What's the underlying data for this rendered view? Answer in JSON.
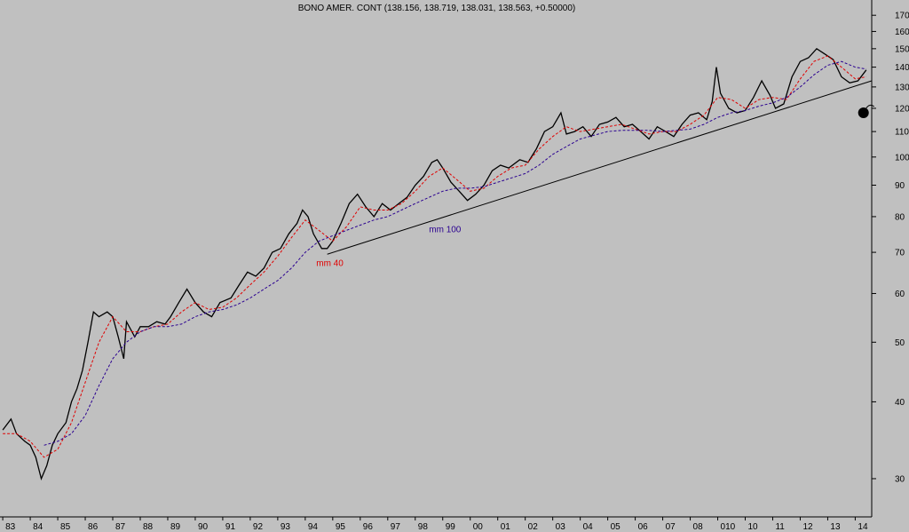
{
  "chart_data": {
    "type": "line",
    "title": "BONO AMER. CONT (138.156, 138.719, 138.031, 138.563, +0.50000)",
    "y_scale": "log",
    "ylim": [
      26,
      180
    ],
    "x_range": [
      1982.9,
      2014.6
    ],
    "y_ticks": [
      30,
      40,
      50,
      60,
      70,
      80,
      90,
      100,
      110,
      120,
      130,
      140,
      150,
      160,
      170
    ],
    "x_ticks": [
      {
        "label": "83",
        "x": 1983.0
      },
      {
        "label": "84",
        "x": 1984.0
      },
      {
        "label": "85",
        "x": 1985.0
      },
      {
        "label": "86",
        "x": 1986.0
      },
      {
        "label": "87",
        "x": 1987.0
      },
      {
        "label": "88",
        "x": 1988.0
      },
      {
        "label": "89",
        "x": 1989.0
      },
      {
        "label": "90",
        "x": 1990.0
      },
      {
        "label": "91",
        "x": 1991.0
      },
      {
        "label": "92",
        "x": 1992.0
      },
      {
        "label": "93",
        "x": 1993.0
      },
      {
        "label": "94",
        "x": 1994.0
      },
      {
        "label": "95",
        "x": 1995.0
      },
      {
        "label": "96",
        "x": 1996.0
      },
      {
        "label": "97",
        "x": 1997.0
      },
      {
        "label": "98",
        "x": 1998.0
      },
      {
        "label": "99",
        "x": 1999.0
      },
      {
        "label": "00",
        "x": 2000.0
      },
      {
        "label": "01",
        "x": 2001.0
      },
      {
        "label": "02",
        "x": 2002.0
      },
      {
        "label": "03",
        "x": 2003.0
      },
      {
        "label": "04",
        "x": 2004.0
      },
      {
        "label": "05",
        "x": 2005.0
      },
      {
        "label": "06",
        "x": 2006.0
      },
      {
        "label": "07",
        "x": 2007.0
      },
      {
        "label": "08",
        "x": 2008.0
      },
      {
        "label": "010",
        "x": 2009.0
      },
      {
        "label": "10",
        "x": 2010.0
      },
      {
        "label": "11",
        "x": 2011.0
      },
      {
        "label": "12",
        "x": 2012.0
      },
      {
        "label": "13",
        "x": 2013.0
      },
      {
        "label": "14",
        "x": 2014.0
      }
    ],
    "grid": false,
    "series": [
      {
        "color": "#000000",
        "style": "price bars",
        "points": [
          [
            1983.0,
            36.0
          ],
          [
            1983.3,
            37.5
          ],
          [
            1983.5,
            35.5
          ],
          [
            1983.8,
            34.5
          ],
          [
            1984.0,
            34.0
          ],
          [
            1984.2,
            32.5
          ],
          [
            1984.4,
            30.0
          ],
          [
            1984.6,
            31.5
          ],
          [
            1984.8,
            34.0
          ],
          [
            1985.0,
            35.5
          ],
          [
            1985.3,
            37.0
          ],
          [
            1985.5,
            40.0
          ],
          [
            1985.7,
            42.0
          ],
          [
            1985.9,
            45.0
          ],
          [
            1986.1,
            50.0
          ],
          [
            1986.3,
            56.0
          ],
          [
            1986.5,
            55.0
          ],
          [
            1986.8,
            56.0
          ],
          [
            1987.0,
            55.0
          ],
          [
            1987.2,
            51.0
          ],
          [
            1987.4,
            47.0
          ],
          [
            1987.5,
            54.0
          ],
          [
            1987.8,
            51.0
          ],
          [
            1988.0,
            53.0
          ],
          [
            1988.3,
            53.0
          ],
          [
            1988.6,
            54.0
          ],
          [
            1988.9,
            53.5
          ],
          [
            1989.1,
            55.0
          ],
          [
            1989.4,
            58.0
          ],
          [
            1989.7,
            61.0
          ],
          [
            1990.0,
            58.0
          ],
          [
            1990.3,
            56.0
          ],
          [
            1990.6,
            55.0
          ],
          [
            1990.9,
            58.0
          ],
          [
            1991.3,
            59.0
          ],
          [
            1991.6,
            62.0
          ],
          [
            1991.9,
            65.0
          ],
          [
            1992.2,
            64.0
          ],
          [
            1992.5,
            66.0
          ],
          [
            1992.8,
            70.0
          ],
          [
            1993.1,
            71.0
          ],
          [
            1993.4,
            75.0
          ],
          [
            1993.7,
            78.0
          ],
          [
            1993.9,
            82.0
          ],
          [
            1994.1,
            80.0
          ],
          [
            1994.3,
            75.0
          ],
          [
            1994.6,
            71.0
          ],
          [
            1994.8,
            71.0
          ],
          [
            1995.0,
            73.0
          ],
          [
            1995.3,
            78.0
          ],
          [
            1995.6,
            84.0
          ],
          [
            1995.9,
            87.0
          ],
          [
            1996.2,
            83.0
          ],
          [
            1996.5,
            80.0
          ],
          [
            1996.8,
            84.0
          ],
          [
            1997.1,
            82.0
          ],
          [
            1997.4,
            84.0
          ],
          [
            1997.7,
            86.0
          ],
          [
            1998.0,
            90.0
          ],
          [
            1998.3,
            93.0
          ],
          [
            1998.6,
            98.0
          ],
          [
            1998.8,
            99.0
          ],
          [
            1999.0,
            96.0
          ],
          [
            1999.3,
            91.0
          ],
          [
            1999.6,
            88.0
          ],
          [
            1999.9,
            85.0
          ],
          [
            2000.2,
            87.0
          ],
          [
            2000.5,
            90.0
          ],
          [
            2000.8,
            95.0
          ],
          [
            2001.1,
            97.0
          ],
          [
            2001.4,
            96.0
          ],
          [
            2001.8,
            99.0
          ],
          [
            2002.1,
            98.0
          ],
          [
            2002.4,
            103.0
          ],
          [
            2002.7,
            110.0
          ],
          [
            2003.0,
            112.0
          ],
          [
            2003.3,
            118.0
          ],
          [
            2003.5,
            109.0
          ],
          [
            2003.8,
            110.0
          ],
          [
            2004.1,
            112.0
          ],
          [
            2004.4,
            108.0
          ],
          [
            2004.7,
            113.0
          ],
          [
            2005.0,
            114.0
          ],
          [
            2005.3,
            116.0
          ],
          [
            2005.6,
            112.0
          ],
          [
            2005.9,
            113.0
          ],
          [
            2006.2,
            110.0
          ],
          [
            2006.5,
            107.0
          ],
          [
            2006.8,
            112.0
          ],
          [
            2007.1,
            110.0
          ],
          [
            2007.4,
            108.0
          ],
          [
            2007.7,
            113.0
          ],
          [
            2008.0,
            117.0
          ],
          [
            2008.3,
            118.0
          ],
          [
            2008.6,
            115.0
          ],
          [
            2008.8,
            123.0
          ],
          [
            2008.95,
            140.0
          ],
          [
            2009.1,
            127.0
          ],
          [
            2009.4,
            120.0
          ],
          [
            2009.7,
            118.0
          ],
          [
            2010.0,
            119.0
          ],
          [
            2010.3,
            125.0
          ],
          [
            2010.6,
            133.0
          ],
          [
            2010.9,
            126.0
          ],
          [
            2011.1,
            120.0
          ],
          [
            2011.4,
            122.0
          ],
          [
            2011.7,
            135.0
          ],
          [
            2012.0,
            143.0
          ],
          [
            2012.3,
            145.0
          ],
          [
            2012.6,
            150.0
          ],
          [
            2012.9,
            147.0
          ],
          [
            2013.2,
            144.0
          ],
          [
            2013.5,
            135.0
          ],
          [
            2013.8,
            132.0
          ],
          [
            2014.1,
            133.0
          ],
          [
            2014.4,
            138.5
          ]
        ]
      },
      {
        "name": "mm 40",
        "color": "#e00000",
        "style": "dashed",
        "points": [
          [
            1983.0,
            35.5
          ],
          [
            1983.5,
            35.5
          ],
          [
            1984.0,
            34.5
          ],
          [
            1984.5,
            32.5
          ],
          [
            1985.0,
            33.5
          ],
          [
            1985.5,
            37.0
          ],
          [
            1986.0,
            43.0
          ],
          [
            1986.5,
            50.0
          ],
          [
            1987.0,
            55.0
          ],
          [
            1987.5,
            52.0
          ],
          [
            1988.0,
            52.0
          ],
          [
            1988.5,
            53.0
          ],
          [
            1989.0,
            53.5
          ],
          [
            1989.5,
            56.0
          ],
          [
            1990.0,
            58.0
          ],
          [
            1990.5,
            56.5
          ],
          [
            1991.0,
            57.0
          ],
          [
            1991.5,
            59.0
          ],
          [
            1992.0,
            62.0
          ],
          [
            1992.5,
            65.0
          ],
          [
            1993.0,
            69.0
          ],
          [
            1993.5,
            74.0
          ],
          [
            1994.0,
            79.0
          ],
          [
            1994.5,
            76.0
          ],
          [
            1995.0,
            73.0
          ],
          [
            1995.5,
            77.0
          ],
          [
            1996.0,
            83.0
          ],
          [
            1996.5,
            82.0
          ],
          [
            1997.0,
            82.0
          ],
          [
            1997.5,
            84.0
          ],
          [
            1998.0,
            88.0
          ],
          [
            1998.5,
            93.0
          ],
          [
            1999.0,
            96.0
          ],
          [
            1999.5,
            92.0
          ],
          [
            2000.0,
            88.0
          ],
          [
            2000.5,
            89.0
          ],
          [
            2001.0,
            93.0
          ],
          [
            2001.5,
            96.0
          ],
          [
            2002.0,
            97.0
          ],
          [
            2002.5,
            103.0
          ],
          [
            2003.0,
            108.0
          ],
          [
            2003.5,
            112.0
          ],
          [
            2004.0,
            110.0
          ],
          [
            2004.5,
            111.0
          ],
          [
            2005.0,
            112.0
          ],
          [
            2005.5,
            113.0
          ],
          [
            2006.0,
            111.0
          ],
          [
            2006.5,
            109.0
          ],
          [
            2007.0,
            110.0
          ],
          [
            2007.5,
            110.0
          ],
          [
            2008.0,
            113.0
          ],
          [
            2008.5,
            117.0
          ],
          [
            2009.0,
            125.0
          ],
          [
            2009.5,
            124.0
          ],
          [
            2010.0,
            120.0
          ],
          [
            2010.5,
            124.0
          ],
          [
            2011.0,
            125.0
          ],
          [
            2011.5,
            124.0
          ],
          [
            2012.0,
            134.0
          ],
          [
            2012.5,
            143.0
          ],
          [
            2013.0,
            146.0
          ],
          [
            2013.5,
            140.0
          ],
          [
            2014.0,
            134.0
          ],
          [
            2014.4,
            135.0
          ]
        ]
      },
      {
        "name": "mm 100",
        "color": "#2a0090",
        "style": "dashed",
        "points": [
          [
            1984.5,
            34.0
          ],
          [
            1985.0,
            34.5
          ],
          [
            1985.5,
            35.5
          ],
          [
            1986.0,
            38.0
          ],
          [
            1986.5,
            42.5
          ],
          [
            1987.0,
            47.0
          ],
          [
            1987.5,
            50.0
          ],
          [
            1988.0,
            52.0
          ],
          [
            1988.5,
            53.0
          ],
          [
            1989.0,
            53.0
          ],
          [
            1989.5,
            53.5
          ],
          [
            1990.0,
            55.0
          ],
          [
            1990.5,
            56.0
          ],
          [
            1991.0,
            56.5
          ],
          [
            1991.5,
            57.5
          ],
          [
            1992.0,
            59.0
          ],
          [
            1992.5,
            61.0
          ],
          [
            1993.0,
            63.0
          ],
          [
            1993.5,
            66.0
          ],
          [
            1994.0,
            70.0
          ],
          [
            1994.5,
            73.0
          ],
          [
            1995.0,
            74.5
          ],
          [
            1995.5,
            76.0
          ],
          [
            1996.0,
            77.5
          ],
          [
            1996.5,
            79.0
          ],
          [
            1997.0,
            80.0
          ],
          [
            1997.5,
            82.0
          ],
          [
            1998.0,
            84.0
          ],
          [
            1998.5,
            86.0
          ],
          [
            1999.0,
            88.0
          ],
          [
            1999.5,
            89.0
          ],
          [
            2000.0,
            89.0
          ],
          [
            2000.5,
            89.5
          ],
          [
            2001.0,
            91.0
          ],
          [
            2001.5,
            92.5
          ],
          [
            2002.0,
            94.0
          ],
          [
            2002.5,
            97.0
          ],
          [
            2003.0,
            101.0
          ],
          [
            2003.5,
            104.0
          ],
          [
            2004.0,
            107.0
          ],
          [
            2004.5,
            108.5
          ],
          [
            2005.0,
            110.0
          ],
          [
            2005.5,
            110.5
          ],
          [
            2006.0,
            110.5
          ],
          [
            2006.5,
            110.5
          ],
          [
            2007.0,
            110.0
          ],
          [
            2007.5,
            110.5
          ],
          [
            2008.0,
            111.0
          ],
          [
            2008.5,
            113.0
          ],
          [
            2009.0,
            116.0
          ],
          [
            2009.5,
            118.0
          ],
          [
            2010.0,
            119.0
          ],
          [
            2010.5,
            121.0
          ],
          [
            2011.0,
            122.5
          ],
          [
            2011.5,
            125.0
          ],
          [
            2012.0,
            130.0
          ],
          [
            2012.5,
            136.0
          ],
          [
            2013.0,
            141.0
          ],
          [
            2013.5,
            143.0
          ],
          [
            2014.0,
            140.0
          ],
          [
            2014.4,
            139.0
          ]
        ]
      }
    ],
    "trendline": {
      "color": "#000000",
      "from": [
        1994.8,
        69.5
      ],
      "to": [
        2014.6,
        133.0
      ]
    },
    "annotations": [
      {
        "text": "mm 40",
        "color": "#e00000",
        "x": 1994.4,
        "y": 66.5
      },
      {
        "text": "mm 100",
        "color": "#2a0090",
        "x": 1998.5,
        "y": 75.5
      }
    ],
    "marker": {
      "name": "bomb-icon",
      "color": "#000000",
      "x": 2014.3,
      "y": 118.0
    }
  }
}
